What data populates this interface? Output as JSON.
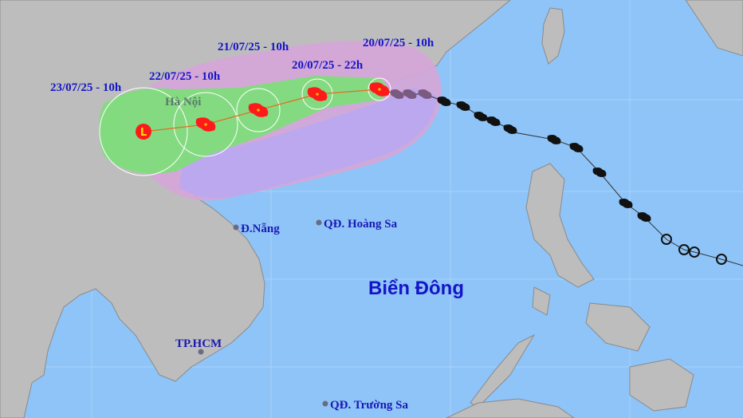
{
  "map": {
    "sea_label": "Biển Đông",
    "forecast_labels": [
      {
        "text": "20/07/25 - 10h"
      },
      {
        "text": "20/07/25 - 22h"
      },
      {
        "text": "21/07/25 - 10h"
      },
      {
        "text": "22/07/25 - 10h"
      },
      {
        "text": "23/07/25 - 10h"
      }
    ],
    "places": [
      {
        "name": "Hà Nội"
      },
      {
        "name": "Đ.Nẵng"
      },
      {
        "name": "QĐ. Hoàng Sa"
      },
      {
        "name": "TP.HCM"
      },
      {
        "name": "QĐ. Trường Sa"
      }
    ],
    "low_pressure_symbol": "L",
    "colors": {
      "sea": "#8ec4f8",
      "land": "#bdbdbd",
      "danger_zone": "#d6a6d8",
      "uncertainty_cone": "#b9a8ef",
      "strong_wind_zone": "#80dc7c",
      "forecast_storm": "#ff1a1a",
      "past_track_black": "#111111",
      "past_track_purple": "#7a5a80",
      "label_text": "#1515c8"
    },
    "icons": [
      "typhoon-icon",
      "low-pressure-icon",
      "city-dot-icon",
      "weak-storm-circle-icon"
    ]
  }
}
